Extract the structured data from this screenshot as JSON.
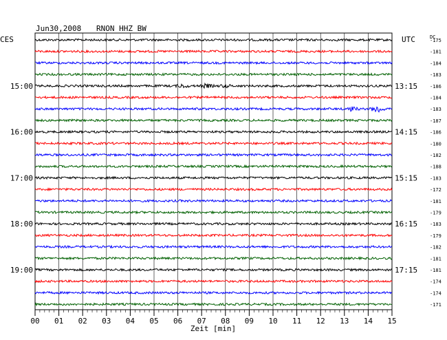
{
  "header": {
    "date": "Jun30,2008",
    "station": "RNON HHZ BW",
    "left_zone": "CES",
    "right_zone": "UTC",
    "dc_label": "DC"
  },
  "chart_data": {
    "type": "line",
    "title": "Jun30,2008   RNON HHZ BW",
    "xlabel": "Zeit [min]",
    "xlim": [
      0,
      15
    ],
    "x_ticks": [
      "00",
      "01",
      "02",
      "03",
      "04",
      "05",
      "06",
      "07",
      "08",
      "09",
      "10",
      "11",
      "12",
      "13",
      "14",
      "15"
    ],
    "grid": true,
    "trace_colors": [
      "#000000",
      "#ff0000",
      "#0000ff",
      "#006000"
    ],
    "left_hour_labels": [
      {
        "label": "15:00",
        "trace_index": 4
      },
      {
        "label": "16:00",
        "trace_index": 8
      },
      {
        "label": "17:00",
        "trace_index": 12
      },
      {
        "label": "18:00",
        "trace_index": 16
      },
      {
        "label": "19:00",
        "trace_index": 20
      }
    ],
    "right_hour_labels": [
      {
        "label": "13:15",
        "trace_index": 4
      },
      {
        "label": "14:15",
        "trace_index": 8
      },
      {
        "label": "15:15",
        "trace_index": 12
      },
      {
        "label": "16:15",
        "trace_index": 16
      },
      {
        "label": "17:15",
        "trace_index": 20
      }
    ],
    "dc_offsets": [
      "-175",
      "-181",
      "-184",
      "-183",
      "-186",
      "-184",
      "-183",
      "-187",
      "-186",
      "-180",
      "-182",
      "-188",
      "-183",
      "-172",
      "-181",
      "-179",
      "-183",
      "-179",
      "-182",
      "-181",
      "-181",
      "-174",
      "-174",
      "-171"
    ],
    "events": [
      {
        "trace_index": 4,
        "x_min": 6.2,
        "amplitude": 1.8
      },
      {
        "trace_index": 4,
        "x_min": 7.2,
        "amplitude": 2.2
      },
      {
        "trace_index": 4,
        "x_min": 8.0,
        "amplitude": 1.6
      },
      {
        "trace_index": 6,
        "x_min": 13.3,
        "amplitude": 2.6
      },
      {
        "trace_index": 6,
        "x_min": 14.4,
        "amplitude": 5.0
      }
    ]
  }
}
